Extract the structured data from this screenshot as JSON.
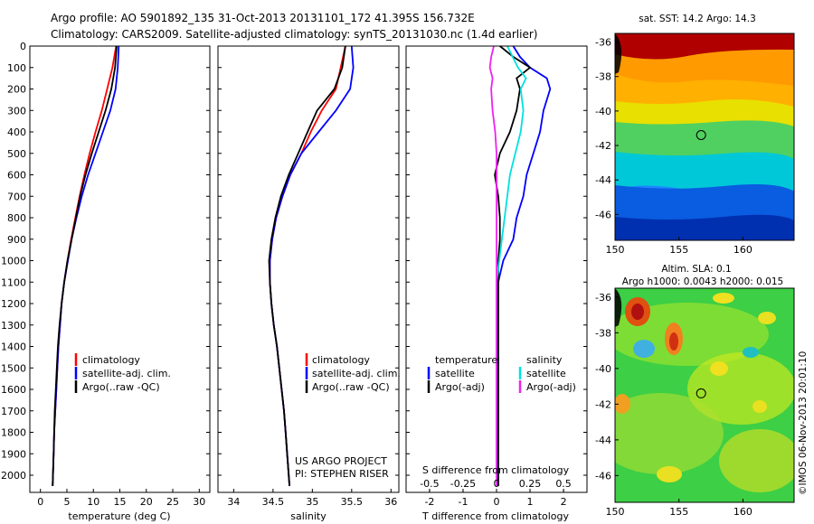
{
  "header": {
    "line1": "Argo profile: AO 5901892_135 31-Oct-2013 20131101_172 41.395S 156.732E",
    "line2": "Climatology: CARS2009. Satellite-adjusted climatology: synTS_20131030.nc (1.4d earlier)"
  },
  "chart_data": [
    {
      "type": "line",
      "xlabel": "temperature (deg C)",
      "ylabel": "",
      "xlim": [
        -2,
        32
      ],
      "ylim": [
        2080,
        0
      ],
      "xticks": [
        0,
        5,
        10,
        15,
        20,
        25,
        30
      ],
      "yticks": [
        0,
        100,
        200,
        300,
        400,
        500,
        600,
        700,
        800,
        900,
        1000,
        1100,
        1200,
        1300,
        1400,
        1500,
        1600,
        1700,
        1800,
        1900,
        2000
      ],
      "legend": [
        "climatology",
        "satellite-adj. clim.",
        "Argo(..raw -QC)"
      ],
      "series": [
        {
          "name": "climatology",
          "color": "#ff0000",
          "depth": [
            0,
            100,
            200,
            300,
            400,
            500,
            600,
            700,
            800,
            900,
            1000,
            1100,
            1200,
            1300,
            1400,
            1500,
            1600,
            1700,
            1800,
            1900,
            2050
          ],
          "values": [
            14.3,
            13.6,
            12.6,
            11.6,
            10.4,
            9.3,
            8.3,
            7.4,
            6.6,
            5.8,
            5.1,
            4.5,
            4.0,
            3.7,
            3.4,
            3.2,
            3.0,
            2.8,
            2.6,
            2.5,
            2.3
          ]
        },
        {
          "name": "satellite-adj. clim.",
          "color": "#0000ff",
          "depth": [
            0,
            100,
            200,
            300,
            400,
            500,
            600,
            700,
            800,
            900,
            1000,
            1100,
            1200,
            1300,
            1400,
            1500,
            1600,
            1700,
            1800,
            1900,
            2050
          ],
          "values": [
            14.8,
            14.6,
            14.2,
            13.2,
            11.8,
            10.4,
            9.0,
            7.8,
            6.8,
            5.9,
            5.2,
            4.5,
            4.0,
            3.7,
            3.4,
            3.2,
            3.0,
            2.8,
            2.6,
            2.5,
            2.3
          ]
        },
        {
          "name": "Argo(..raw -QC)",
          "color": "#000000",
          "depth": [
            0,
            100,
            200,
            300,
            400,
            500,
            600,
            700,
            800,
            900,
            1000,
            1100,
            1200,
            1300,
            1400,
            1500,
            1600,
            1700,
            1800,
            1900,
            2050
          ],
          "values": [
            14.4,
            14.1,
            13.4,
            12.3,
            11.0,
            9.7,
            8.5,
            7.5,
            6.7,
            5.9,
            5.1,
            4.5,
            4.0,
            3.6,
            3.3,
            3.1,
            2.9,
            2.7,
            2.6,
            2.5,
            2.3
          ]
        }
      ]
    },
    {
      "type": "line",
      "xlabel": "salinity",
      "ylabel": "",
      "xlim": [
        33.8,
        36.1
      ],
      "ylim": [
        2080,
        0
      ],
      "xticks": [
        34,
        34.5,
        35,
        35.5,
        36
      ],
      "xticklabels": [
        "34",
        "34.5",
        "35",
        "35.5",
        "36"
      ],
      "legend": [
        "climatology",
        "satellite-adj. clim.",
        "Argo(..raw -QC)"
      ],
      "annotation": [
        "US ARGO PROJECT",
        "PI: STEPHEN RISER"
      ],
      "series": [
        {
          "name": "climatology",
          "color": "#ff0000",
          "depth": [
            0,
            100,
            200,
            300,
            400,
            500,
            600,
            700,
            800,
            900,
            1000,
            1100,
            1200,
            1300,
            1400,
            1500,
            1600,
            1700,
            1800,
            1900,
            2050
          ],
          "values": [
            35.42,
            35.36,
            35.3,
            35.12,
            34.98,
            34.86,
            34.72,
            34.62,
            34.54,
            34.49,
            34.46,
            34.46,
            34.48,
            34.51,
            34.55,
            34.58,
            34.61,
            34.64,
            34.66,
            34.68,
            34.71
          ]
        },
        {
          "name": "satellite-adj. clim.",
          "color": "#0000ff",
          "depth": [
            0,
            100,
            200,
            300,
            400,
            500,
            600,
            700,
            800,
            900,
            1000,
            1100,
            1200,
            1300,
            1400,
            1500,
            1600,
            1700,
            1800,
            1900,
            2050
          ],
          "values": [
            35.5,
            35.52,
            35.48,
            35.3,
            35.08,
            34.86,
            34.72,
            34.62,
            34.54,
            34.49,
            34.46,
            34.46,
            34.48,
            34.51,
            34.55,
            34.58,
            34.61,
            34.64,
            34.66,
            34.68,
            34.71
          ]
        },
        {
          "name": "Argo(..raw -QC)",
          "color": "#000000",
          "depth": [
            0,
            100,
            200,
            300,
            400,
            500,
            600,
            700,
            800,
            900,
            1000,
            1100,
            1200,
            1300,
            1400,
            1500,
            1600,
            1700,
            1800,
            1900,
            2050
          ],
          "values": [
            35.42,
            35.38,
            35.28,
            35.06,
            34.94,
            34.82,
            34.7,
            34.6,
            34.53,
            34.48,
            34.45,
            34.46,
            34.48,
            34.51,
            34.55,
            34.58,
            34.61,
            34.64,
            34.66,
            34.68,
            34.71
          ]
        }
      ]
    },
    {
      "type": "line",
      "xlabel": "T difference from climatology",
      "secondary_xlabel": "S difference from climatology",
      "ylabel": "",
      "xlim": [
        -2.7,
        2.7
      ],
      "ylim": [
        2080,
        0
      ],
      "xticks": [
        -2,
        -1,
        0,
        1,
        2
      ],
      "secondary_xticks": [
        -0.5,
        -0.25,
        0,
        0.25,
        0.5
      ],
      "secondary_xticklabels": [
        "-0.5",
        "-0.25",
        "0",
        "0.25",
        "0.5"
      ],
      "legend": [
        "temperature",
        "satellite",
        "Argo(-adj)",
        "salinity",
        "satellite",
        "Argo(-adj)"
      ],
      "series": [
        {
          "name": "satellite",
          "group": "temperature",
          "color": "#0000ff",
          "depth": [
            0,
            50,
            100,
            150,
            200,
            300,
            400,
            500,
            600,
            700,
            800,
            900,
            1000,
            1100,
            1200,
            1300,
            1400,
            1500,
            1600,
            1700,
            1800,
            1900,
            2050
          ],
          "values": [
            0.5,
            0.7,
            1.0,
            1.5,
            1.6,
            1.4,
            1.3,
            1.1,
            0.9,
            0.8,
            0.6,
            0.5,
            0.2,
            0.05,
            0.05,
            0.05,
            0.05,
            0.05,
            0.05,
            0.05,
            0.05,
            0.05,
            0.05
          ]
        },
        {
          "name": "Argo(-adj)",
          "group": "temperature",
          "color": "#000000",
          "depth": [
            0,
            50,
            100,
            150,
            200,
            300,
            400,
            500,
            600,
            700,
            800,
            900,
            1000,
            1100,
            1200,
            1300,
            1400,
            1500,
            1600,
            1700,
            1800,
            1900,
            2050
          ],
          "values": [
            0.1,
            0.5,
            1.0,
            0.6,
            0.7,
            0.6,
            0.4,
            0.1,
            -0.05,
            0.05,
            0.1,
            0.1,
            0.05,
            0.05,
            0.05,
            0.05,
            0.05,
            0.05,
            0.05,
            0.05,
            0.05,
            0.05,
            0.05
          ]
        },
        {
          "name": "satellite",
          "group": "salinity",
          "color": "#00e0e0",
          "depth": [
            0,
            50,
            100,
            150,
            200,
            300,
            400,
            500,
            600,
            700,
            800,
            900,
            1000,
            1100,
            1200,
            1300,
            1400,
            1500,
            1600,
            1700,
            1800,
            1900,
            2050
          ],
          "values": [
            0.08,
            0.12,
            0.16,
            0.22,
            0.18,
            0.2,
            0.18,
            0.14,
            0.1,
            0.08,
            0.06,
            0.04,
            0.02,
            0.0,
            0.0,
            0.0,
            0.0,
            0.0,
            0.0,
            0.0,
            0.0,
            0.0,
            0.0
          ]
        },
        {
          "name": "Argo(-adj)",
          "group": "salinity",
          "color": "#ee22ee",
          "depth": [
            0,
            50,
            100,
            150,
            200,
            300,
            400,
            500,
            600,
            700,
            800,
            900,
            1000,
            1100,
            1200,
            1300,
            1400,
            1500,
            1600,
            1700,
            1800,
            1900,
            2050
          ],
          "values": [
            -0.02,
            -0.04,
            -0.05,
            -0.03,
            -0.04,
            -0.03,
            -0.01,
            0.0,
            0.0,
            0.0,
            0.0,
            0.0,
            0.0,
            0.0,
            0.0,
            0.0,
            0.0,
            0.0,
            0.0,
            0.0,
            0.0,
            0.0,
            0.0
          ]
        }
      ]
    },
    {
      "type": "heatmap",
      "title": "sat. SST: 14.2  Argo: 14.3",
      "xlim": [
        150,
        164
      ],
      "ylim": [
        -47.5,
        -35.5
      ],
      "xticks": [
        150,
        155,
        160
      ],
      "yticks": [
        -36,
        -38,
        -40,
        -42,
        -44,
        -46
      ],
      "marker": {
        "lon": 156.732,
        "lat": -41.395
      }
    },
    {
      "type": "heatmap",
      "title": "Altim. SLA: 0.1",
      "subtitle": "Argo h1000: 0.0043 h2000: 0.015",
      "side_label": "©IMOS 06-Nov-2013 20:01:10",
      "xlim": [
        150,
        164
      ],
      "ylim": [
        -47.5,
        -35.5
      ],
      "xticks": [
        150,
        155,
        160
      ],
      "yticks": [
        -36,
        -38,
        -40,
        -42,
        -44,
        -46
      ],
      "marker": {
        "lon": 156.732,
        "lat": -41.395
      }
    }
  ]
}
